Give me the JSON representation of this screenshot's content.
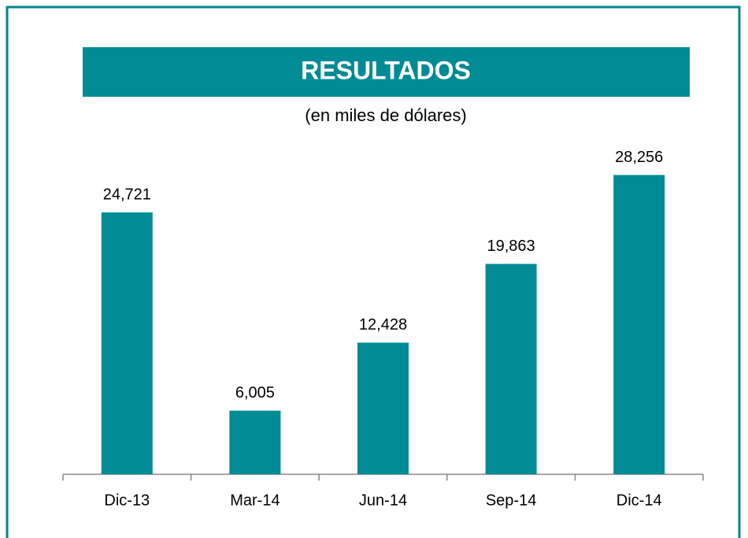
{
  "chart_data": {
    "type": "bar",
    "title": "RESULTADOS",
    "subtitle": "(en miles de dólares)",
    "categories": [
      "Dic-13",
      "Mar-14",
      "Jun-14",
      "Sep-14",
      "Dic-14"
    ],
    "values": [
      24721,
      6005,
      12428,
      19863,
      28256
    ],
    "value_labels": [
      "24,721",
      "6,005",
      "12,428",
      "19,863",
      "28,256"
    ],
    "color": "#008b95",
    "ylim": [
      0,
      30000
    ],
    "grid": false
  }
}
